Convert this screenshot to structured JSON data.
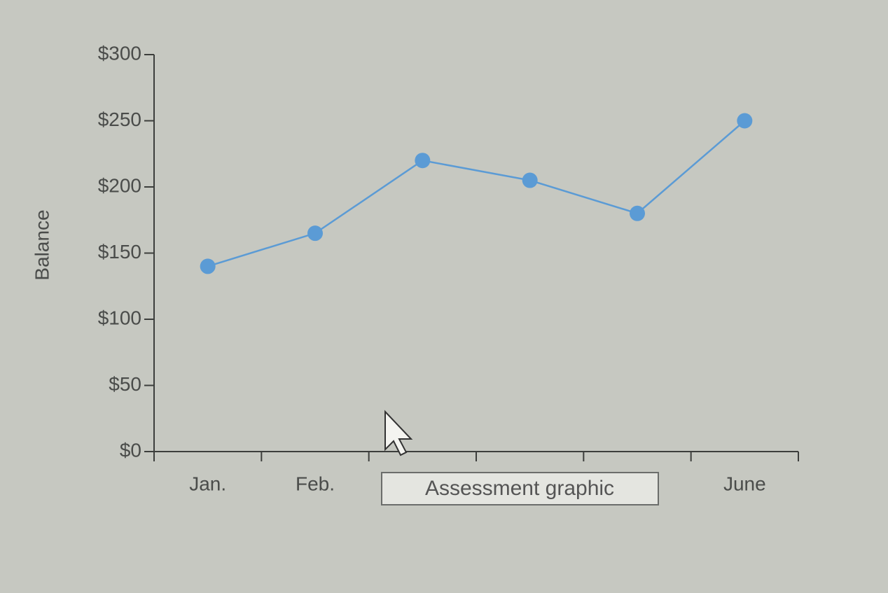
{
  "chart_data": {
    "type": "line",
    "y_label": "Balance",
    "categories": [
      "Jan.",
      "Feb.",
      null,
      null,
      null,
      "June"
    ],
    "series": [
      {
        "color": "#5b9bd5",
        "values": [
          140,
          165,
          220,
          205,
          180,
          250
        ]
      }
    ],
    "ylim": [
      0,
      300
    ],
    "yticks": [
      {
        "value": 0,
        "label": "$0"
      },
      {
        "value": 50,
        "label": "$50"
      },
      {
        "value": 100,
        "label": "$100"
      },
      {
        "value": 150,
        "label": "$150"
      },
      {
        "value": 200,
        "label": "$200"
      },
      {
        "value": 250,
        "label": "$250"
      },
      {
        "value": 300,
        "label": "$300"
      }
    ],
    "grid": false
  },
  "tooltip": "Assessment graphic"
}
